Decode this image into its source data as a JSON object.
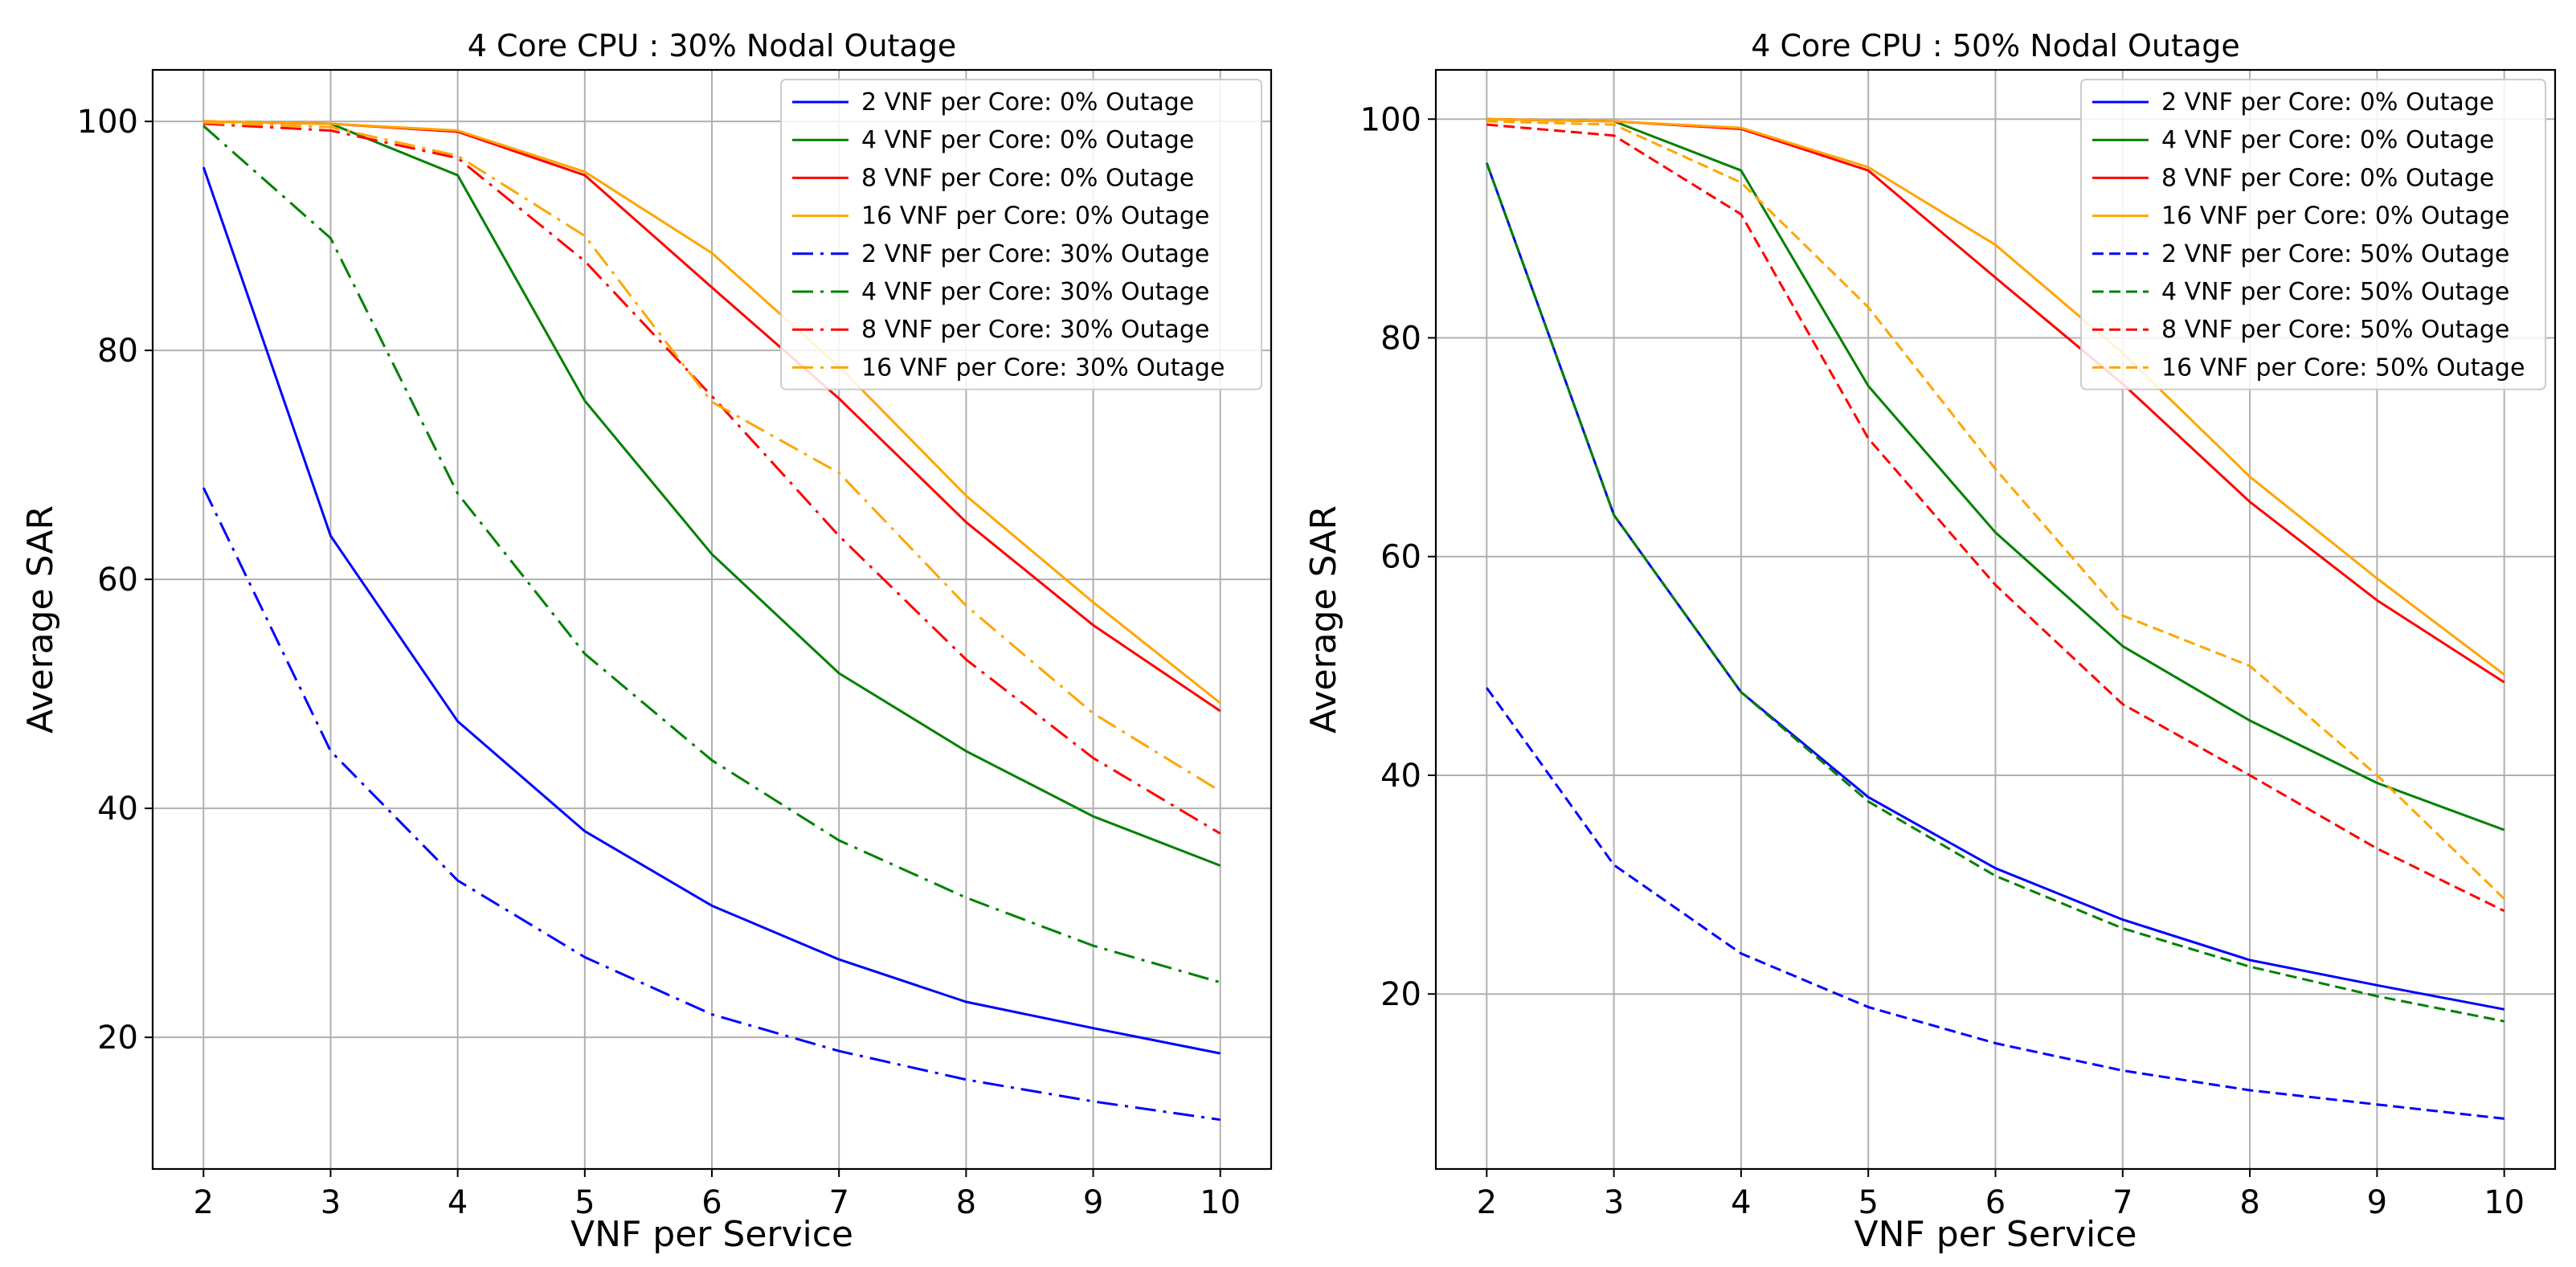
{
  "chart_data": [
    {
      "type": "line",
      "title": "4 Core CPU : 30% Nodal Outage",
      "xlabel": "VNF per Service",
      "ylabel": "Average SAR",
      "xlim": [
        1.6,
        10.4
      ],
      "ylim": [
        8.5,
        104.5
      ],
      "xticks": [
        2,
        3,
        4,
        5,
        6,
        7,
        8,
        9,
        10
      ],
      "yticks": [
        20,
        40,
        60,
        80,
        100
      ],
      "grid": true,
      "legend": "top-right",
      "x": [
        2,
        3,
        4,
        5,
        6,
        7,
        8,
        9,
        10
      ],
      "series": [
        {
          "name": "2 VNF per Core: 0% Outage",
          "color": "#0000ff",
          "dash": "solid",
          "values": [
            96.0,
            63.8,
            47.6,
            38.0,
            31.5,
            26.8,
            23.1,
            20.8,
            18.6
          ]
        },
        {
          "name": "4 VNF per Core: 0% Outage",
          "color": "#008000",
          "dash": "solid",
          "values": [
            100.0,
            99.8,
            95.3,
            75.6,
            62.2,
            51.8,
            45.0,
            39.3,
            35.0
          ]
        },
        {
          "name": "8 VNF per Core: 0% Outage",
          "color": "#ff0000",
          "dash": "solid",
          "values": [
            100.0,
            99.8,
            99.1,
            95.3,
            85.5,
            75.8,
            65.0,
            56.0,
            48.5
          ]
        },
        {
          "name": "16 VNF per Core: 0% Outage",
          "color": "#ffa500",
          "dash": "solid",
          "values": [
            100.0,
            99.8,
            99.2,
            95.6,
            88.5,
            78.6,
            67.3,
            58.0,
            49.2
          ]
        },
        {
          "name": "2 VNF per Core: 30% Outage",
          "color": "#0000ff",
          "dash": "dashdot",
          "values": [
            68.0,
            45.0,
            33.7,
            27.0,
            22.0,
            18.8,
            16.3,
            14.4,
            12.8
          ]
        },
        {
          "name": "4 VNF per Core: 30% Outage",
          "color": "#008000",
          "dash": "dashdot",
          "values": [
            99.6,
            89.8,
            67.5,
            53.5,
            44.2,
            37.2,
            32.2,
            28.0,
            24.8
          ]
        },
        {
          "name": "8 VNF per Core: 30% Outage",
          "color": "#ff0000",
          "dash": "dashdot",
          "values": [
            99.8,
            99.2,
            96.8,
            87.8,
            76.0,
            63.8,
            53.0,
            44.4,
            37.8
          ]
        },
        {
          "name": "16 VNF per Core: 30% Outage",
          "color": "#ffa500",
          "dash": "dashdot",
          "values": [
            99.9,
            99.5,
            97.0,
            90.0,
            75.5,
            69.3,
            57.7,
            48.3,
            41.5
          ]
        }
      ]
    },
    {
      "type": "line",
      "title": "4 Core CPU : 50% Nodal Outage",
      "xlabel": "VNF per Service",
      "ylabel": "Average SAR",
      "xlim": [
        1.6,
        10.4
      ],
      "ylim": [
        4.0,
        104.5
      ],
      "xticks": [
        2,
        3,
        4,
        5,
        6,
        7,
        8,
        9,
        10
      ],
      "yticks": [
        20,
        40,
        60,
        80,
        100
      ],
      "grid": true,
      "legend": "top-right",
      "x": [
        2,
        3,
        4,
        5,
        6,
        7,
        8,
        9,
        10
      ],
      "series": [
        {
          "name": "2 VNF per Core: 0% Outage",
          "color": "#0000ff",
          "dash": "solid",
          "values": [
            96.0,
            63.8,
            47.6,
            38.0,
            31.5,
            26.8,
            23.1,
            20.8,
            18.6
          ]
        },
        {
          "name": "4 VNF per Core: 0% Outage",
          "color": "#008000",
          "dash": "solid",
          "values": [
            100.0,
            99.8,
            95.3,
            75.6,
            62.2,
            51.8,
            45.0,
            39.3,
            35.0
          ]
        },
        {
          "name": "8 VNF per Core: 0% Outage",
          "color": "#ff0000",
          "dash": "solid",
          "values": [
            100.0,
            99.8,
            99.1,
            95.3,
            85.5,
            75.8,
            65.0,
            56.0,
            48.5
          ]
        },
        {
          "name": "16 VNF per Core: 0% Outage",
          "color": "#ffa500",
          "dash": "solid",
          "values": [
            100.0,
            99.8,
            99.2,
            95.6,
            88.5,
            78.6,
            67.3,
            58.0,
            49.2
          ]
        },
        {
          "name": "2 VNF per Core: 50% Outage",
          "color": "#0000ff",
          "dash": "dashed",
          "values": [
            48.0,
            31.8,
            23.7,
            18.8,
            15.5,
            13.0,
            11.2,
            9.9,
            8.6
          ]
        },
        {
          "name": "4 VNF per Core: 50% Outage",
          "color": "#008000",
          "dash": "dashed",
          "values": [
            96.0,
            63.8,
            47.6,
            37.6,
            30.8,
            26.0,
            22.5,
            19.8,
            17.5
          ]
        },
        {
          "name": "8 VNF per Core: 50% Outage",
          "color": "#ff0000",
          "dash": "dashed",
          "values": [
            99.5,
            98.5,
            91.3,
            70.8,
            57.4,
            46.5,
            40.0,
            33.3,
            27.6
          ]
        },
        {
          "name": "16 VNF per Core: 50% Outage",
          "color": "#ffa500",
          "dash": "dashed",
          "values": [
            99.8,
            99.5,
            94.2,
            82.8,
            68.0,
            54.6,
            50.0,
            40.0,
            28.7
          ]
        }
      ]
    }
  ]
}
